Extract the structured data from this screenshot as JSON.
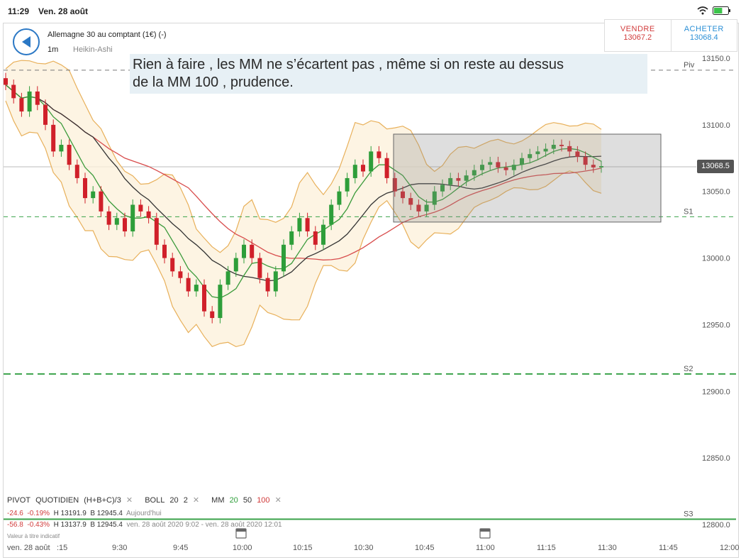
{
  "status_bar": {
    "time": "11:29",
    "date": "Ven. 28 août",
    "battery_percent": 60
  },
  "header": {
    "instrument": "Allemagne 30 au comptant (1€) (-)",
    "timeframe": "1m",
    "chart_type": "Heikin-Ashi"
  },
  "trade": {
    "sell_label": "VENDRE",
    "sell_price": "13067.2",
    "buy_label": "ACHETER",
    "buy_price": "13068.4"
  },
  "comment": {
    "line1": "Rien à faire , les MM ne s’écartent pas , même si on reste au dessus",
    "line2": "de la MM 100 , prudence."
  },
  "price_axis": {
    "labels": [
      "13150.0",
      "13100.0",
      "13050.0",
      "13000.0",
      "12950.0",
      "12900.0",
      "12850.0",
      "12800.0"
    ],
    "current": "13068.5"
  },
  "pivots": [
    {
      "name": "Piv",
      "value": 13141
    },
    {
      "name": "S1",
      "value": 13031
    },
    {
      "name": "S2",
      "value": 12913
    },
    {
      "name": "S3",
      "value": 12804
    }
  ],
  "time_axis": {
    "labels": [
      "ven. 28 août",
      ":15",
      "9:30",
      "9:45",
      "10:00",
      "10:15",
      "10:30",
      "10:45",
      "11:00",
      "11:15",
      "11:30",
      "11:45",
      "12:00"
    ]
  },
  "legend": {
    "pivot": "PIVOT",
    "quotidien": "QUOTIDIEN",
    "formula": "(H+B+C)/3",
    "boll": "BOLL",
    "boll_p1": "20",
    "boll_p2": "2",
    "mm": "MM",
    "mm1": "20",
    "mm2": "50",
    "mm3": "100",
    "row1_change": "-24.6",
    "row1_pct": "-0.19%",
    "row1_h": "H 13191.9",
    "row1_b": "B 12945.4",
    "row1_period": "Aujourd'hui",
    "row2_change": "-56.8",
    "row2_pct": "-0.43%",
    "row2_h": "H 13137.9",
    "row2_b": "B 12945.4",
    "row2_period": "ven. 28 août 2020 9:02 - ven. 28 août 2020 12:01",
    "disclaimer": "Valeur à titre indicatif"
  },
  "colors": {
    "up": "#2e9e3a",
    "down": "#d0202a",
    "mm20": "#3a9a3a",
    "mm50": "#333333",
    "mm100": "#d84c4c",
    "boll": "#e8b05a"
  },
  "chart_data": {
    "type": "candlestick",
    "ylim": [
      12790,
      13160
    ],
    "range_box": {
      "x_start": "10:36",
      "x_end": "11:43",
      "y_low": 13027,
      "y_high": 13093
    },
    "close": [
      13130,
      13120,
      13110,
      13125,
      13115,
      13100,
      13080,
      13085,
      13070,
      13060,
      13045,
      13050,
      13035,
      13025,
      13030,
      13020,
      13040,
      13035,
      13030,
      13010,
      13000,
      12990,
      12985,
      12975,
      12980,
      12960,
      12955,
      12980,
      12990,
      13000,
      13010,
      13000,
      12985,
      12975,
      12990,
      13010,
      13020,
      13030,
      13020,
      13010,
      13025,
      13040,
      13050,
      13060,
      13070,
      13065,
      13080,
      13075,
      13060,
      13050,
      13045,
      13040,
      13035,
      13040,
      13050,
      13055,
      13060,
      13058,
      13062,
      13066,
      13070,
      13072,
      13068,
      13066,
      13070,
      13075,
      13078,
      13080,
      13082,
      13085,
      13084,
      13080,
      13076,
      13070,
      13068,
      13069
    ],
    "mm100_end": 13050,
    "mm50_end": 13064,
    "mm20_end": 13072
  }
}
